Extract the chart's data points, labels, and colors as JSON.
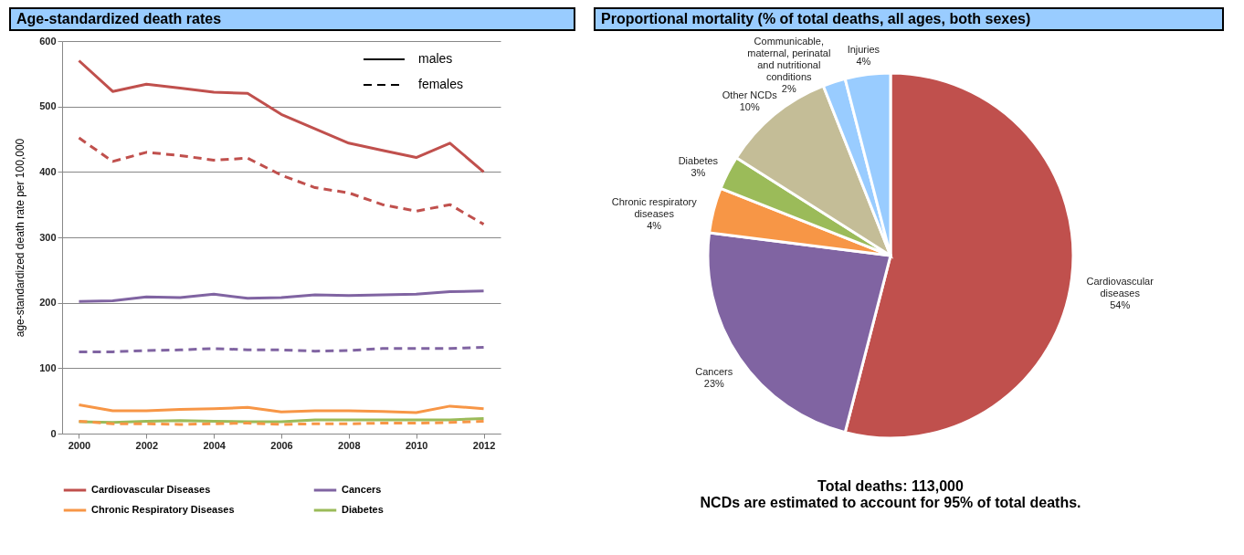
{
  "chart_data": [
    {
      "type": "line",
      "title": "Age-standardized death rates",
      "ylabel": "age-standardized death rate per 100,000",
      "x": [
        2000,
        2001,
        2002,
        2003,
        2004,
        2005,
        2006,
        2007,
        2008,
        2009,
        2010,
        2011,
        2012
      ],
      "xlim": [
        1999.5,
        2012.5
      ],
      "xticks": [
        2000,
        2002,
        2004,
        2006,
        2008,
        2010,
        2012
      ],
      "ylim": [
        0,
        600
      ],
      "yticks": [
        0,
        100,
        200,
        300,
        400,
        500,
        600
      ],
      "grid": "y",
      "legend": "bottom",
      "annotations": [
        "males",
        "females"
      ],
      "series": [
        {
          "name": "Cardiovascular Diseases",
          "color": "#c0504d",
          "line_style": "solid",
          "values": [
            570,
            523,
            534,
            528,
            522,
            520,
            488,
            466,
            444,
            433,
            422,
            444,
            400
          ]
        },
        {
          "color": "#c0504d",
          "line_style": "dashed",
          "values": [
            452,
            416,
            430,
            425,
            418,
            421,
            395,
            376,
            368,
            350,
            340,
            350,
            320
          ]
        },
        {
          "name": "Cancers",
          "color": "#8064a2",
          "line_style": "solid",
          "values": [
            202,
            203,
            209,
            208,
            213,
            207,
            208,
            212,
            211,
            212,
            213,
            217,
            218
          ]
        },
        {
          "color": "#8064a2",
          "line_style": "dashed",
          "values": [
            125,
            125,
            127,
            128,
            130,
            128,
            128,
            126,
            127,
            130,
            130,
            130,
            132
          ]
        },
        {
          "name": "Chronic Respiratory Diseases",
          "color": "#f79646",
          "line_style": "solid",
          "values": [
            44,
            35,
            35,
            37,
            38,
            40,
            33,
            35,
            35,
            34,
            32,
            42,
            38
          ]
        },
        {
          "color": "#f79646",
          "line_style": "dashed",
          "values": [
            19,
            15,
            15,
            14,
            15,
            16,
            14,
            15,
            15,
            16,
            16,
            17,
            19
          ]
        },
        {
          "name": "Diabetes",
          "color": "#9bbb59",
          "line_style": "solid",
          "values": [
            18,
            17,
            19,
            20,
            19,
            18,
            18,
            21,
            21,
            21,
            21,
            21,
            23
          ]
        }
      ]
    },
    {
      "type": "pie",
      "title": "Proportional mortality (% of total deaths, all ages, both sexes)",
      "categories": [
        "Cardiovascular diseases",
        "Cancers",
        "Chronic respiratory diseases",
        "Diabetes",
        "Other NCDs",
        "Communicable, maternal, perinatal and nutritional conditions",
        "Injuries"
      ],
      "values": [
        54,
        23,
        4,
        3,
        10,
        2,
        4
      ],
      "colors": [
        "#c0504d",
        "#8064a2",
        "#f79646",
        "#9bbb59",
        "#c4bd97",
        "#99ccff",
        "#99ccff"
      ],
      "value_labels": [
        "54%",
        "23%",
        "4%",
        "3%",
        "10%",
        "2%",
        "4%"
      ],
      "legend": false,
      "annotations": [
        "Total deaths: 113,000",
        "NCDs are estimated to account for 95% of total deaths."
      ]
    }
  ]
}
